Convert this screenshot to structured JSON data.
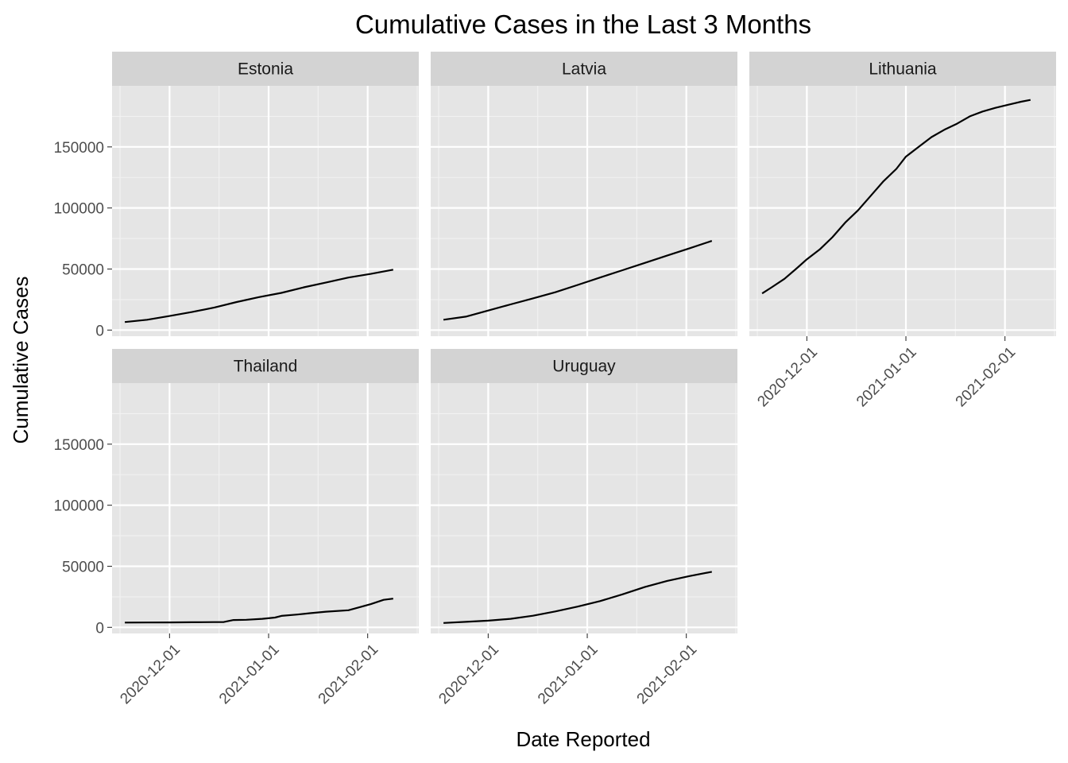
{
  "chart_data": {
    "type": "line",
    "title": "Cumulative Cases in the Last 3 Months",
    "xlabel": "Date Reported",
    "ylabel": "Cumulative Cases",
    "xlim": [
      "2020-11-13",
      "2021-02-17"
    ],
    "ylim": [
      -5000,
      200000
    ],
    "x_ticks": [
      "2020-12-01",
      "2021-01-01",
      "2021-02-01"
    ],
    "y_ticks": [
      0,
      50000,
      100000,
      150000
    ],
    "y_tick_labels": [
      "0",
      "50000",
      "100000",
      "150000"
    ],
    "grid": true,
    "layout": "facet 3 columns x 2 rows, shared axes",
    "line_color": "#000000",
    "panel_background": "#e5e5e5",
    "strip_background": "#d3d3d3",
    "panels": [
      {
        "name": "Estonia",
        "points": [
          [
            "2020-11-17",
            6600
          ],
          [
            "2020-11-24",
            8500
          ],
          [
            "2020-12-01",
            11500
          ],
          [
            "2020-12-08",
            14800
          ],
          [
            "2020-12-15",
            18500
          ],
          [
            "2020-12-22",
            23000
          ],
          [
            "2020-12-29",
            27000
          ],
          [
            "2021-01-05",
            30500
          ],
          [
            "2021-01-12",
            35000
          ],
          [
            "2021-01-19",
            39000
          ],
          [
            "2021-01-26",
            43000
          ],
          [
            "2021-02-02",
            46000
          ],
          [
            "2021-02-09",
            49500
          ]
        ]
      },
      {
        "name": "Latvia",
        "points": [
          [
            "2020-11-17",
            8500
          ],
          [
            "2020-11-24",
            11000
          ],
          [
            "2020-12-01",
            16000
          ],
          [
            "2020-12-08",
            21000
          ],
          [
            "2020-12-15",
            26000
          ],
          [
            "2020-12-22",
            31000
          ],
          [
            "2020-12-29",
            37000
          ],
          [
            "2021-01-05",
            43000
          ],
          [
            "2021-01-12",
            49000
          ],
          [
            "2021-01-19",
            55000
          ],
          [
            "2021-01-26",
            61000
          ],
          [
            "2021-02-02",
            67000
          ],
          [
            "2021-02-09",
            73000
          ]
        ]
      },
      {
        "name": "Lithuania",
        "points": [
          [
            "2020-11-17",
            30000
          ],
          [
            "2020-11-20",
            35000
          ],
          [
            "2020-11-24",
            42000
          ],
          [
            "2020-11-28",
            51000
          ],
          [
            "2020-12-01",
            58000
          ],
          [
            "2020-12-05",
            66000
          ],
          [
            "2020-12-09",
            76000
          ],
          [
            "2020-12-13",
            88000
          ],
          [
            "2020-12-17",
            98000
          ],
          [
            "2020-12-21",
            110000
          ],
          [
            "2020-12-25",
            122000
          ],
          [
            "2020-12-29",
            132000
          ],
          [
            "2021-01-01",
            142000
          ],
          [
            "2021-01-05",
            150000
          ],
          [
            "2021-01-09",
            158000
          ],
          [
            "2021-01-13",
            164000
          ],
          [
            "2021-01-17",
            169000
          ],
          [
            "2021-01-21",
            175000
          ],
          [
            "2021-01-25",
            179000
          ],
          [
            "2021-01-29",
            182000
          ],
          [
            "2021-02-02",
            184500
          ],
          [
            "2021-02-06",
            187000
          ],
          [
            "2021-02-09",
            188500
          ]
        ]
      },
      {
        "name": "Thailand",
        "points": [
          [
            "2020-11-17",
            3900
          ],
          [
            "2020-11-24",
            3950
          ],
          [
            "2020-12-01",
            4050
          ],
          [
            "2020-12-08",
            4150
          ],
          [
            "2020-12-15",
            4300
          ],
          [
            "2020-12-18",
            4400
          ],
          [
            "2020-12-21",
            6000
          ],
          [
            "2020-12-25",
            6200
          ],
          [
            "2020-12-30",
            7000
          ],
          [
            "2021-01-03",
            8000
          ],
          [
            "2021-01-05",
            9400
          ],
          [
            "2021-01-10",
            10500
          ],
          [
            "2021-01-14",
            11600
          ],
          [
            "2021-01-19",
            12800
          ],
          [
            "2021-01-26",
            14000
          ],
          [
            "2021-02-02",
            19000
          ],
          [
            "2021-02-06",
            22500
          ],
          [
            "2021-02-09",
            23500
          ]
        ]
      },
      {
        "name": "Uruguay",
        "points": [
          [
            "2020-11-17",
            3600
          ],
          [
            "2020-11-24",
            4500
          ],
          [
            "2020-12-01",
            5500
          ],
          [
            "2020-12-08",
            7000
          ],
          [
            "2020-12-15",
            9500
          ],
          [
            "2020-12-22",
            13000
          ],
          [
            "2020-12-29",
            17000
          ],
          [
            "2021-01-05",
            21500
          ],
          [
            "2021-01-12",
            27000
          ],
          [
            "2021-01-19",
            33000
          ],
          [
            "2021-01-26",
            38000
          ],
          [
            "2021-02-02",
            42000
          ],
          [
            "2021-02-09",
            45500
          ]
        ]
      }
    ]
  }
}
